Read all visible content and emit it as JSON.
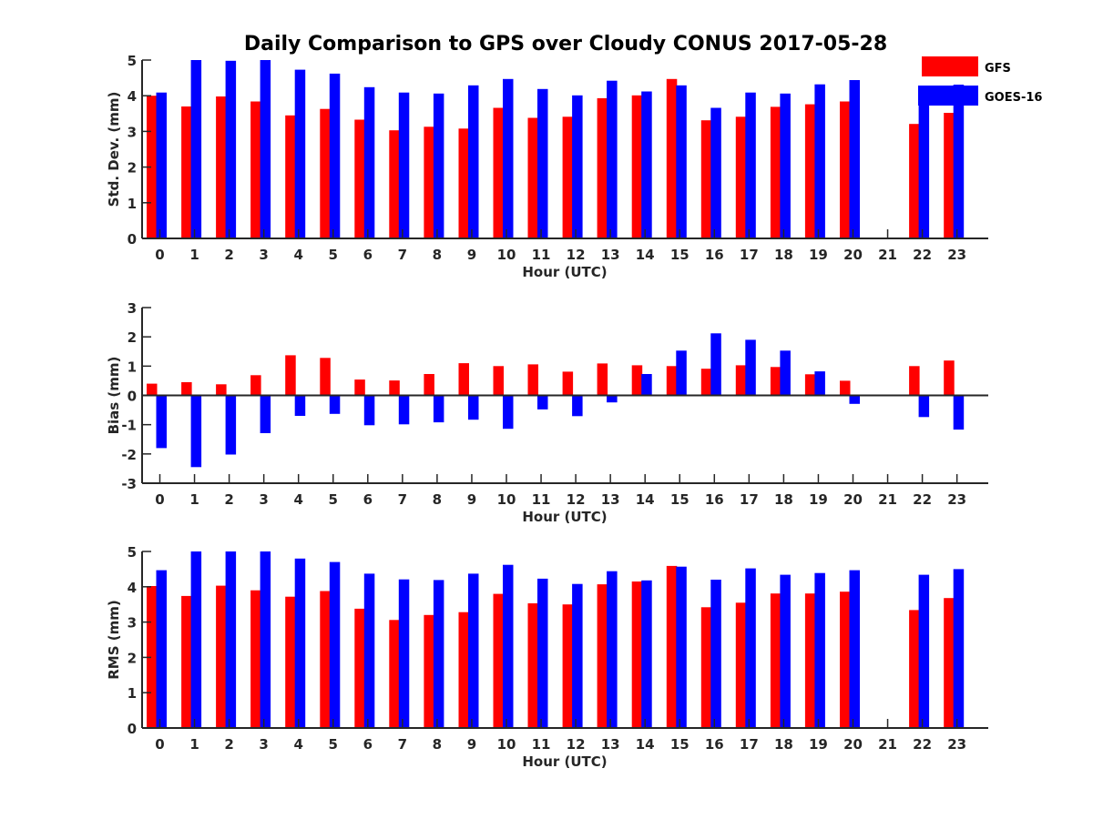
{
  "chart_data": {
    "type": "bar",
    "title": "Daily Comparison to GPS over Cloudy CONUS 2017-05-28",
    "legend": {
      "placement": "top-right",
      "entries": [
        {
          "name": "GFS",
          "color": "#ff0000"
        },
        {
          "name": "GOES-16",
          "color": "#0000ff"
        }
      ]
    },
    "categories": [
      "0",
      "1",
      "2",
      "3",
      "4",
      "5",
      "6",
      "7",
      "8",
      "9",
      "10",
      "11",
      "12",
      "13",
      "14",
      "15",
      "16",
      "17",
      "18",
      "19",
      "20",
      "21",
      "22",
      "23"
    ],
    "panels": [
      {
        "id": "stddev",
        "ylabel": "Std. Dev. (mm)",
        "xlabel": "Hour (UTC)",
        "ylim": [
          0,
          5
        ],
        "yticks": [
          "0",
          "1",
          "2",
          "3",
          "4",
          "5"
        ],
        "series": [
          {
            "name": "GFS",
            "color": "#ff0000",
            "values": [
              4.0,
              3.7,
              3.98,
              3.84,
              3.45,
              3.63,
              3.33,
              3.03,
              3.13,
              3.08,
              3.66,
              3.38,
              3.41,
              3.93,
              4.01,
              4.47,
              3.31,
              3.41,
              3.69,
              3.76,
              3.84,
              null,
              3.21,
              3.52
            ]
          },
          {
            "name": "GOES-16",
            "color": "#0000ff",
            "values": [
              4.09,
              5.0,
              4.98,
              5.0,
              4.73,
              4.62,
              4.24,
              4.09,
              4.06,
              4.29,
              4.47,
              4.19,
              4.01,
              4.42,
              4.12,
              4.29,
              3.66,
              4.09,
              4.06,
              4.32,
              4.44,
              null,
              4.27,
              4.31
            ]
          }
        ]
      },
      {
        "id": "bias",
        "ylabel": "Bias (mm)",
        "xlabel": "Hour (UTC)",
        "ylim": [
          -3,
          3
        ],
        "yticks": [
          "-3",
          "-2",
          "-1",
          "0",
          "1",
          "2",
          "3"
        ],
        "series": [
          {
            "name": "GFS",
            "color": "#ff0000",
            "values": [
              0.4,
              0.45,
              0.38,
              0.69,
              1.37,
              1.28,
              0.54,
              0.51,
              0.73,
              1.1,
              1.0,
              1.06,
              0.81,
              1.09,
              1.03,
              1.0,
              0.91,
              1.03,
              0.97,
              0.72,
              0.5,
              null,
              1.0,
              1.19
            ]
          },
          {
            "name": "GOES-16",
            "color": "#0000ff",
            "values": [
              -1.8,
              -2.45,
              -2.02,
              -1.29,
              -0.7,
              -0.63,
              -1.02,
              -0.99,
              -0.92,
              -0.83,
              -1.14,
              -0.48,
              -0.71,
              -0.24,
              0.73,
              1.53,
              2.12,
              1.9,
              1.53,
              0.82,
              -0.29,
              null,
              -0.74,
              -1.17
            ]
          }
        ]
      },
      {
        "id": "rms",
        "ylabel": "RMS (mm)",
        "xlabel": "Hour (UTC)",
        "ylim": [
          0,
          5
        ],
        "yticks": [
          "0",
          "1",
          "2",
          "3",
          "4",
          "5"
        ],
        "series": [
          {
            "name": "GFS",
            "color": "#ff0000",
            "values": [
              4.02,
              3.74,
              4.03,
              3.9,
              3.72,
              3.88,
              3.38,
              3.06,
              3.2,
              3.28,
              3.8,
              3.53,
              3.5,
              4.07,
              4.15,
              4.59,
              3.42,
              3.55,
              3.81,
              3.81,
              3.86,
              null,
              3.34,
              3.68
            ]
          },
          {
            "name": "GOES-16",
            "color": "#0000ff",
            "values": [
              4.47,
              5.0,
              5.0,
              5.0,
              4.8,
              4.7,
              4.37,
              4.21,
              4.19,
              4.37,
              4.62,
              4.23,
              4.08,
              4.44,
              4.18,
              4.57,
              4.2,
              4.52,
              4.34,
              4.39,
              4.47,
              null,
              4.34,
              4.5
            ]
          }
        ]
      }
    ]
  }
}
